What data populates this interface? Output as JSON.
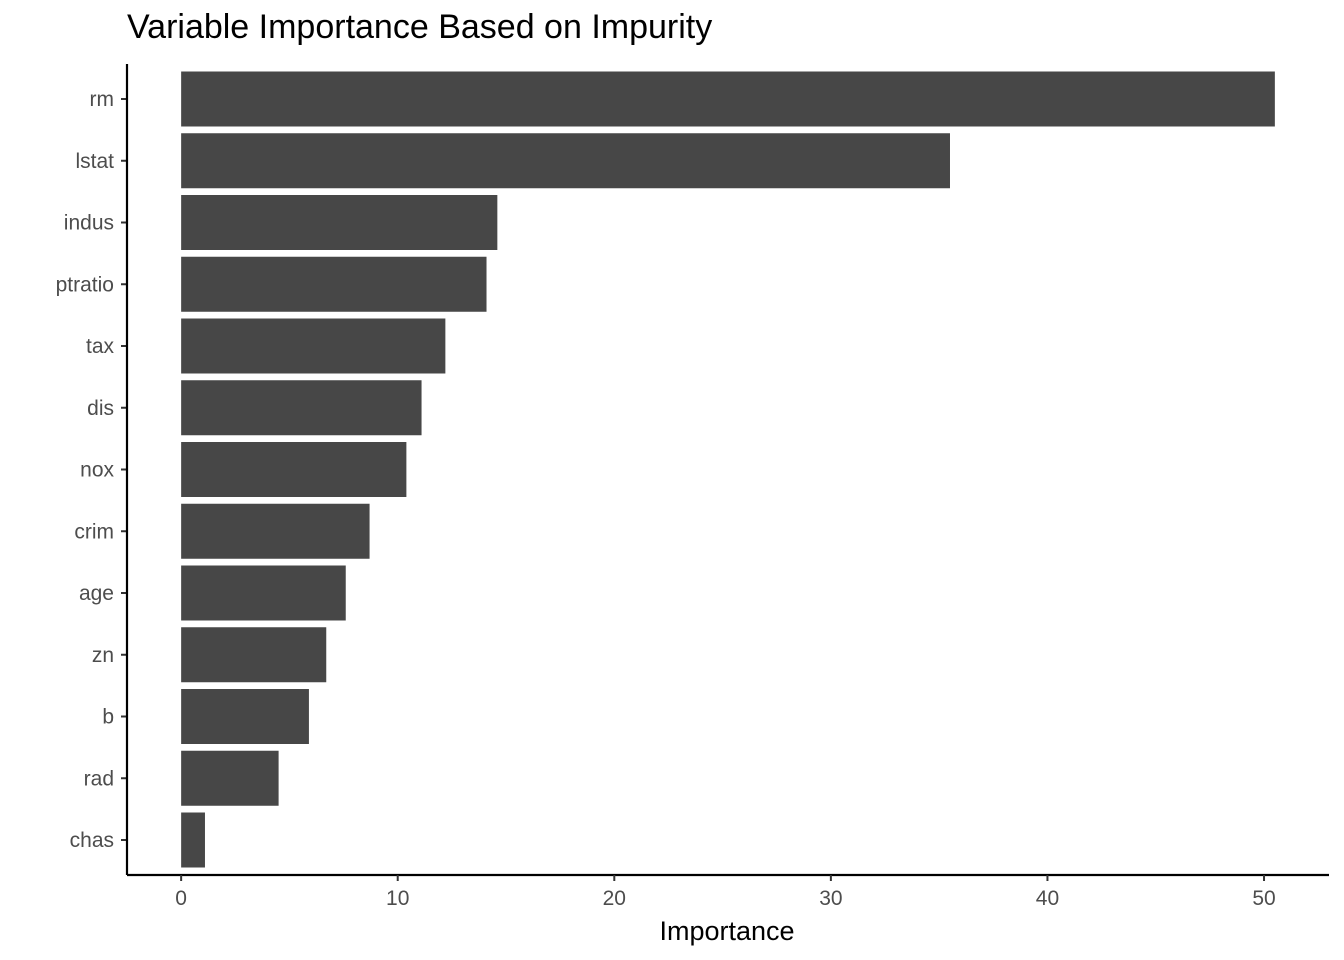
{
  "chart_data": {
    "type": "bar",
    "orientation": "horizontal",
    "title": "Variable Importance Based on Impurity",
    "xlabel": "Importance",
    "ylabel": "",
    "categories": [
      "rm",
      "lstat",
      "indus",
      "ptratio",
      "tax",
      "dis",
      "nox",
      "crim",
      "age",
      "zn",
      "b",
      "rad",
      "chas"
    ],
    "values": [
      50.5,
      35.5,
      14.6,
      14.1,
      12.2,
      11.1,
      10.4,
      8.7,
      7.6,
      6.7,
      5.9,
      4.5,
      1.1
    ],
    "xlim": [
      -2.5,
      53
    ],
    "xticks": [
      0,
      10,
      20,
      30,
      40,
      50
    ],
    "bar_color": "#474747",
    "grid": false,
    "legend": "none"
  }
}
